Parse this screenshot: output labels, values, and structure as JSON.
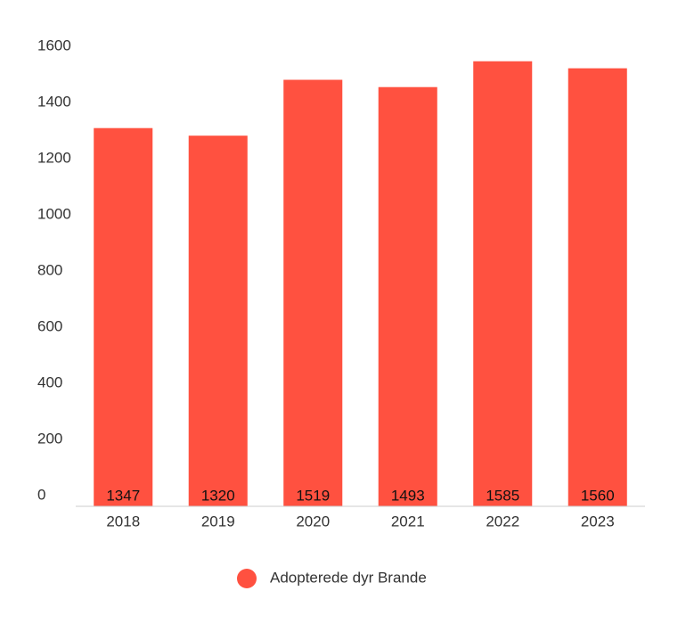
{
  "chart_data": {
    "type": "bar",
    "categories": [
      "2018",
      "2019",
      "2020",
      "2021",
      "2022",
      "2023"
    ],
    "series": [
      {
        "name": "Adopterede dyr Brande",
        "color": "#ff5140",
        "values": [
          1347,
          1320,
          1519,
          1493,
          1585,
          1560
        ]
      }
    ],
    "ylim": [
      0,
      1600
    ],
    "yticks": [
      0,
      200,
      400,
      600,
      800,
      1000,
      1200,
      1400,
      1600
    ],
    "grid": false,
    "legend": "bottom"
  }
}
